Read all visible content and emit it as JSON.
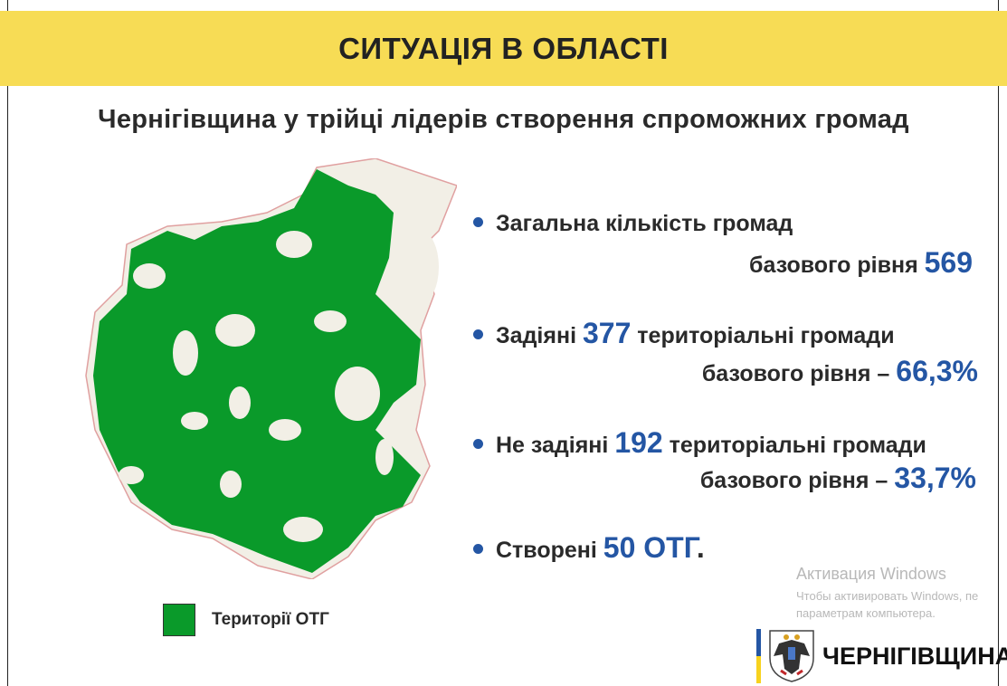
{
  "header": {
    "title": "СИТУАЦІЯ В ОБЛАСТІ"
  },
  "subtitle": "Чернігівщина у трійці лідерів створення спроможних громад",
  "colors": {
    "banner": "#f7dc55",
    "accent": "#2456a4",
    "otg_green": "#0a9a2a"
  },
  "stats": [
    {
      "line1": "Загальна кількість громад",
      "line2_text": "базового рівня ",
      "line2_num": "569"
    },
    {
      "pre": "Задіяні ",
      "num": "377",
      "post": " територіальні громади",
      "line2_text": "базового рівня – ",
      "line2_num": "66,3%"
    },
    {
      "pre": "Не задіяні ",
      "num": "192",
      "post": " територіальні громади",
      "line2_text": "базового рівня – ",
      "line2_num": "33,7%"
    },
    {
      "pre": "Створені ",
      "num": "50 ОТГ",
      "post": "."
    }
  ],
  "legend": {
    "label": "Території ОТГ"
  },
  "watermark": {
    "title": "Активация Windows",
    "line1": "Чтобы активировать Windows, пе",
    "line2": "параметрам компьютера."
  },
  "logo": {
    "text": "ЧЕРНІГІВЩИНА",
    "icon": "coat-of-arms-eagle-icon"
  }
}
